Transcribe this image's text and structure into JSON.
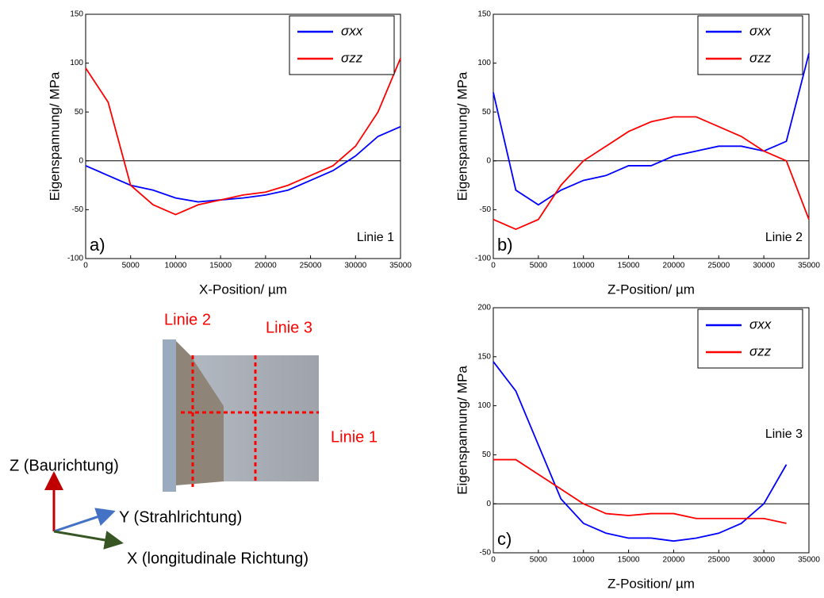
{
  "chart_data": [
    {
      "type": "line",
      "xlabel": "X-Position/ µm",
      "ylabel": "Eigenspannung/ MPa",
      "panel_label": "a)",
      "annotation": "Linie 1",
      "x": [
        0,
        2500,
        5000,
        7500,
        10000,
        12500,
        15000,
        17500,
        20000,
        22500,
        25000,
        27500,
        30000,
        32500,
        35000
      ],
      "series": [
        {
          "name": "σxx",
          "color": "#0000ff",
          "values": [
            -5,
            -15,
            -25,
            -30,
            -38,
            -42,
            -40,
            -38,
            -35,
            -30,
            -20,
            -10,
            5,
            25,
            35
          ]
        },
        {
          "name": "σzz",
          "color": "#ff0000",
          "values": [
            95,
            60,
            -25,
            -45,
            -55,
            -45,
            -40,
            -35,
            -32,
            -25,
            -15,
            -5,
            15,
            50,
            105
          ]
        }
      ],
      "xlim": [
        0,
        35000
      ],
      "xticks": [
        0,
        5000,
        10000,
        15000,
        20000,
        25000,
        30000,
        35000
      ],
      "ylim": [
        -100,
        150
      ],
      "yticks": [
        -100,
        -50,
        0,
        50,
        100,
        150
      ],
      "legend": "upper right"
    },
    {
      "type": "line",
      "xlabel": "Z-Position/ µm",
      "ylabel": "Eigenspannung/ MPa",
      "panel_label": "b)",
      "annotation": "Linie 2",
      "x": [
        0,
        2500,
        5000,
        7500,
        10000,
        12500,
        15000,
        17500,
        20000,
        22500,
        25000,
        27500,
        30000,
        32500,
        35000
      ],
      "series": [
        {
          "name": "σxx",
          "color": "#0000ff",
          "values": [
            70,
            -30,
            -45,
            -30,
            -20,
            -15,
            -5,
            -5,
            5,
            10,
            15,
            15,
            10,
            20,
            110
          ]
        },
        {
          "name": "σzz",
          "color": "#ff0000",
          "values": [
            -60,
            -70,
            -60,
            -25,
            0,
            15,
            30,
            40,
            45,
            45,
            35,
            25,
            10,
            0,
            -60
          ]
        }
      ],
      "xlim": [
        0,
        35000
      ],
      "xticks": [
        0,
        5000,
        10000,
        15000,
        20000,
        25000,
        30000,
        35000
      ],
      "ylim": [
        -100,
        150
      ],
      "yticks": [
        -100,
        -50,
        0,
        50,
        100,
        150
      ],
      "legend": "upper right"
    },
    {
      "type": "line",
      "xlabel": "Z-Position/ µm",
      "ylabel": "Eigenspannung/ MPa",
      "panel_label": "c)",
      "annotation": "Linie 3",
      "x": [
        0,
        2500,
        5000,
        7500,
        10000,
        12500,
        15000,
        17500,
        20000,
        22500,
        25000,
        27500,
        30000,
        32500
      ],
      "series": [
        {
          "name": "σxx",
          "color": "#0000ff",
          "values": [
            145,
            115,
            60,
            5,
            -20,
            -30,
            -35,
            -35,
            -38,
            -35,
            -30,
            -20,
            0,
            40
          ]
        },
        {
          "name": "σzz",
          "color": "#ff0000",
          "values": [
            45,
            45,
            30,
            15,
            0,
            -10,
            -12,
            -10,
            -10,
            -15,
            -15,
            -15,
            -15,
            -20
          ]
        }
      ],
      "xlim": [
        0,
        35000
      ],
      "xticks": [
        0,
        5000,
        10000,
        15000,
        20000,
        25000,
        30000,
        35000
      ],
      "ylim": [
        -50,
        200
      ],
      "yticks": [
        -50,
        0,
        50,
        100,
        150,
        200
      ],
      "legend": "upper right"
    }
  ],
  "diagram": {
    "labels": [
      "Linie 2",
      "Linie 3",
      "Linie 1",
      "Z (Baurichtung)",
      "Y (Strahlrichtung)",
      "X (longitudinale Richtung)"
    ]
  }
}
